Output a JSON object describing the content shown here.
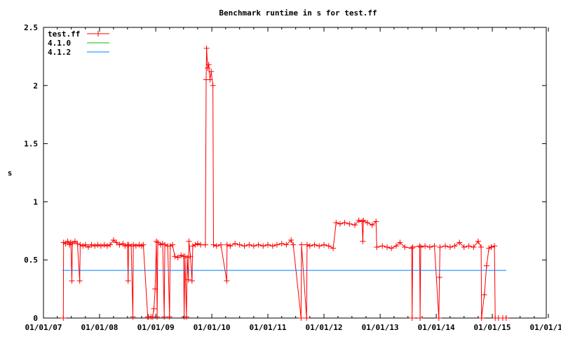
{
  "chart_data": {
    "type": "line",
    "title": "Benchmark runtime in s for test.ff",
    "xlabel": "",
    "ylabel": "s",
    "xlim": [
      "2007-01-01",
      "2016-01-01"
    ],
    "ylim": [
      0,
      2.5
    ],
    "x_ticks": [
      "01/01/07",
      "01/01/08",
      "01/01/09",
      "01/01/10",
      "01/01/11",
      "01/01/12",
      "01/01/13",
      "01/01/14",
      "01/01/15",
      "01/01/16"
    ],
    "y_ticks": [
      "0",
      "0.5",
      "1",
      "1.5",
      "2",
      "2.5"
    ],
    "y_tick_values": [
      0,
      0.5,
      1,
      1.5,
      2,
      2.5
    ],
    "grid": false,
    "legend_position": "top-left",
    "series": [
      {
        "name": "test.ff",
        "color": "#ff0000",
        "style": "linespoints",
        "points": [
          [
            "2007-05-10",
            0
          ],
          [
            "2007-05-12",
            0.65
          ],
          [
            "2007-05-25",
            0.64
          ],
          [
            "2007-06-08",
            0.66
          ],
          [
            "2007-06-20",
            0.63
          ],
          [
            "2007-06-28",
            0.65
          ],
          [
            "2007-07-05",
            0.32
          ],
          [
            "2007-07-08",
            0.64
          ],
          [
            "2007-07-25",
            0.66
          ],
          [
            "2007-08-10",
            0.64
          ],
          [
            "2007-08-25",
            0.32
          ],
          [
            "2007-08-28",
            0.63
          ],
          [
            "2007-09-15",
            0.62
          ],
          [
            "2007-10-01",
            0.63
          ],
          [
            "2007-10-20",
            0.61
          ],
          [
            "2007-11-10",
            0.63
          ],
          [
            "2007-12-01",
            0.62
          ],
          [
            "2007-12-20",
            0.63
          ],
          [
            "2008-01-10",
            0.62
          ],
          [
            "2008-02-01",
            0.63
          ],
          [
            "2008-02-20",
            0.62
          ],
          [
            "2008-03-10",
            0.63
          ],
          [
            "2008-04-01",
            0.67
          ],
          [
            "2008-04-20",
            0.65
          ],
          [
            "2008-05-10",
            0.63
          ],
          [
            "2008-06-01",
            0.64
          ],
          [
            "2008-06-15",
            0.62
          ],
          [
            "2008-07-01",
            0.63
          ],
          [
            "2008-07-05",
            0.32
          ],
          [
            "2008-07-08",
            0.63
          ],
          [
            "2008-07-25",
            0.62
          ],
          [
            "2008-08-05",
            0.01
          ],
          [
            "2008-08-08",
            0.63
          ],
          [
            "2008-08-25",
            0.62
          ],
          [
            "2008-09-15",
            0.63
          ],
          [
            "2008-10-01",
            0.62
          ],
          [
            "2008-10-12",
            0.63
          ],
          [
            "2008-11-10",
            0.01
          ],
          [
            "2008-11-15",
            0.01
          ],
          [
            "2008-12-01",
            0.01
          ],
          [
            "2008-12-12",
            0.01
          ],
          [
            "2008-12-20",
            0.08
          ],
          [
            "2008-12-28",
            0.25
          ],
          [
            "2009-01-05",
            0.66
          ],
          [
            "2009-01-10",
            0.01
          ],
          [
            "2009-01-14",
            0.65
          ],
          [
            "2009-02-01",
            0.63
          ],
          [
            "2009-02-15",
            0.64
          ],
          [
            "2009-02-25",
            0.01
          ],
          [
            "2009-03-01",
            0.63
          ],
          [
            "2009-03-20",
            0.62
          ],
          [
            "2009-04-01",
            0.01
          ],
          [
            "2009-04-05",
            0.62
          ],
          [
            "2009-04-20",
            0.63
          ],
          [
            "2009-05-05",
            0.53
          ],
          [
            "2009-05-25",
            0.52
          ],
          [
            "2009-06-15",
            0.54
          ],
          [
            "2009-07-01",
            0.53
          ],
          [
            "2009-07-05",
            0.01
          ],
          [
            "2009-07-10",
            0.53
          ],
          [
            "2009-07-20",
            0.01
          ],
          [
            "2009-07-25",
            0.52
          ],
          [
            "2009-08-01",
            0.33
          ],
          [
            "2009-08-05",
            0.66
          ],
          [
            "2009-08-15",
            0.53
          ],
          [
            "2009-08-25",
            0.32
          ],
          [
            "2009-08-30",
            0.62
          ],
          [
            "2009-09-15",
            0.63
          ],
          [
            "2009-10-01",
            0.64
          ],
          [
            "2009-10-20",
            0.63
          ],
          [
            "2009-11-20",
            0.63
          ],
          [
            "2009-11-25",
            2.05
          ],
          [
            "2009-11-28",
            2.32
          ],
          [
            "2009-12-05",
            2.15
          ],
          [
            "2009-12-12",
            2.18
          ],
          [
            "2009-12-20",
            2.05
          ],
          [
            "2009-12-28",
            2.12
          ],
          [
            "2010-01-08",
            2.0
          ],
          [
            "2010-01-12",
            0.63
          ],
          [
            "2010-02-01",
            0.62
          ],
          [
            "2010-03-01",
            0.63
          ],
          [
            "2010-04-08",
            0.32
          ],
          [
            "2010-04-10",
            0.63
          ],
          [
            "2010-05-01",
            0.62
          ],
          [
            "2010-06-01",
            0.64
          ],
          [
            "2010-07-01",
            0.63
          ],
          [
            "2010-08-01",
            0.62
          ],
          [
            "2010-09-01",
            0.63
          ],
          [
            "2010-10-01",
            0.62
          ],
          [
            "2010-11-01",
            0.63
          ],
          [
            "2010-12-01",
            0.62
          ],
          [
            "2011-01-01",
            0.63
          ],
          [
            "2011-02-01",
            0.62
          ],
          [
            "2011-03-01",
            0.63
          ],
          [
            "2011-04-01",
            0.64
          ],
          [
            "2011-05-01",
            0.63
          ],
          [
            "2011-06-01",
            0.67
          ],
          [
            "2011-06-15",
            0.63
          ],
          [
            "2011-08-05",
            0
          ],
          [
            "2011-08-08",
            0.63
          ],
          [
            "2011-09-10",
            0
          ],
          [
            "2011-09-13",
            0.63
          ],
          [
            "2011-10-01",
            0.62
          ],
          [
            "2011-11-01",
            0.63
          ],
          [
            "2011-12-01",
            0.62
          ],
          [
            "2012-01-01",
            0.63
          ],
          [
            "2012-02-01",
            0.62
          ],
          [
            "2012-03-01",
            0.6
          ],
          [
            "2012-03-20",
            0.82
          ],
          [
            "2012-04-15",
            0.81
          ],
          [
            "2012-05-15",
            0.82
          ],
          [
            "2012-06-15",
            0.81
          ],
          [
            "2012-07-20",
            0.8
          ],
          [
            "2012-08-15",
            0.84
          ],
          [
            "2012-09-05",
            0.83
          ],
          [
            "2012-09-10",
            0.66
          ],
          [
            "2012-09-14",
            0.84
          ],
          [
            "2012-10-10",
            0.82
          ],
          [
            "2012-11-10",
            0.8
          ],
          [
            "2012-12-05",
            0.83
          ],
          [
            "2012-12-10",
            0.61
          ],
          [
            "2013-01-15",
            0.62
          ],
          [
            "2013-02-15",
            0.61
          ],
          [
            "2013-03-15",
            0.6
          ],
          [
            "2013-04-15",
            0.62
          ],
          [
            "2013-05-10",
            0.65
          ],
          [
            "2013-06-10",
            0.61
          ],
          [
            "2013-07-25",
            0.6
          ],
          [
            "2013-07-28",
            0
          ],
          [
            "2013-08-01",
            0.61
          ],
          [
            "2013-09-15",
            0.62
          ],
          [
            "2013-09-18",
            0
          ],
          [
            "2013-09-22",
            0.61
          ],
          [
            "2013-10-20",
            0.62
          ],
          [
            "2013-11-20",
            0.61
          ],
          [
            "2013-12-20",
            0.62
          ],
          [
            "2014-01-18",
            0
          ],
          [
            "2014-01-22",
            0.35
          ],
          [
            "2014-01-25",
            0.61
          ],
          [
            "2014-03-01",
            0.62
          ],
          [
            "2014-04-01",
            0.61
          ],
          [
            "2014-05-01",
            0.62
          ],
          [
            "2014-06-01",
            0.65
          ],
          [
            "2014-07-01",
            0.61
          ],
          [
            "2014-08-01",
            0.62
          ],
          [
            "2014-09-01",
            0.61
          ],
          [
            "2014-10-01",
            0.66
          ],
          [
            "2014-10-20",
            0.61
          ],
          [
            "2014-10-23",
            0
          ],
          [
            "2014-11-10",
            0.2
          ],
          [
            "2014-11-25",
            0.45
          ],
          [
            "2014-12-10",
            0.6
          ],
          [
            "2014-12-25",
            0.61
          ],
          [
            "2015-01-15",
            0.62
          ],
          [
            "2015-01-20",
            0
          ],
          [
            "2015-02-10",
            0
          ],
          [
            "2015-03-10",
            0
          ],
          [
            "2015-04-01",
            0
          ]
        ]
      },
      {
        "name": "4.1.0",
        "color": "#00c000",
        "style": "lines",
        "points": []
      },
      {
        "name": "4.1.2",
        "color": "#0080ff",
        "style": "lines",
        "points": [
          [
            "2007-05-01",
            0.41
          ],
          [
            "2015-04-01",
            0.41
          ]
        ]
      }
    ]
  }
}
